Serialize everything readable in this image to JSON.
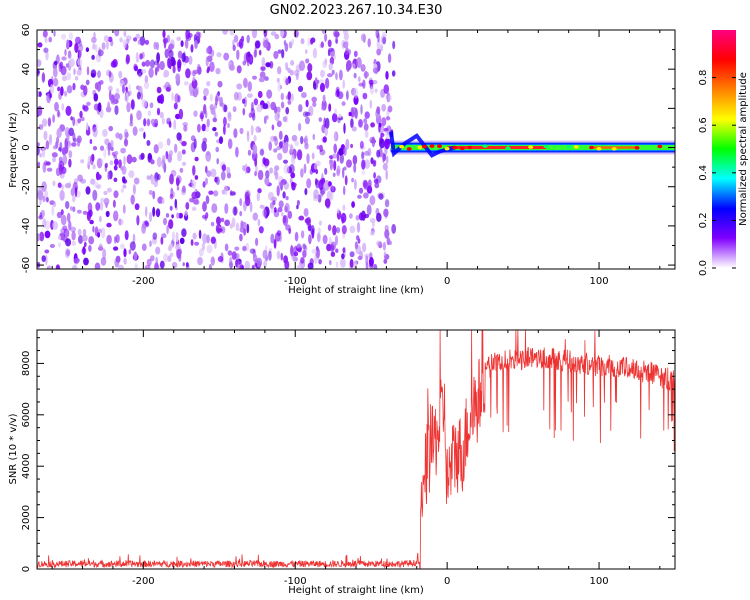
{
  "title": "GN02.2023.267.10.34.E30",
  "chart_data": [
    {
      "type": "heatmap",
      "xlabel": "Height of straight line (km)",
      "ylabel": "Frequency (Hz)",
      "xlim": [
        -270,
        150
      ],
      "ylim": [
        -62,
        60
      ],
      "x_ticks": [
        -200,
        -100,
        0,
        100
      ],
      "y_ticks": [
        60,
        40,
        20,
        0,
        -20,
        -40,
        -60
      ],
      "noise_region_x": [
        -270,
        -35
      ],
      "signal_band": {
        "x_start": -37,
        "x_end": 150,
        "center_hz": 0,
        "halfwidth_hz": 2
      },
      "signal_hotspots_x": [
        -30,
        -25,
        -18,
        -15,
        -10,
        -5,
        0,
        5,
        10,
        15,
        25,
        40,
        55,
        65,
        80,
        85,
        95,
        100,
        110,
        125,
        140
      ],
      "colorbar": {
        "label": "Normalized spectral amplitude",
        "range": [
          0.0,
          1.0
        ],
        "ticks": [
          0.0,
          0.2,
          0.4,
          0.6,
          0.8
        ],
        "colors": [
          "#ffffff",
          "#8000ff",
          "#0000ff",
          "#00ffff",
          "#00ff00",
          "#ffff00",
          "#ff8000",
          "#ff0000",
          "#ff0080"
        ]
      }
    },
    {
      "type": "line",
      "xlabel": "Height of straight line (km)",
      "ylabel": "SNR (10 * v/v)",
      "xlim": [
        -270,
        150
      ],
      "ylim": [
        0,
        9300
      ],
      "x_ticks": [
        -200,
        -100,
        0,
        100
      ],
      "y_ticks": [
        0,
        2000,
        4000,
        6000,
        8000
      ],
      "series": [
        {
          "color": "#ee3333",
          "x": [
            -270,
            -200,
            -100,
            -30,
            -18,
            -15,
            -12,
            -8,
            -5,
            -2,
            0,
            5,
            10,
            15,
            20,
            25,
            30,
            40,
            50,
            60,
            70,
            80,
            90,
            100,
            110,
            120,
            130,
            140,
            150
          ],
          "y": [
            200,
            200,
            200,
            200,
            250,
            3600,
            4400,
            5000,
            5500,
            6500,
            3300,
            4500,
            4500,
            6000,
            6400,
            7700,
            8000,
            8100,
            8200,
            8250,
            8200,
            8100,
            8000,
            7900,
            7900,
            7800,
            7700,
            7500,
            7300
          ]
        }
      ]
    }
  ]
}
